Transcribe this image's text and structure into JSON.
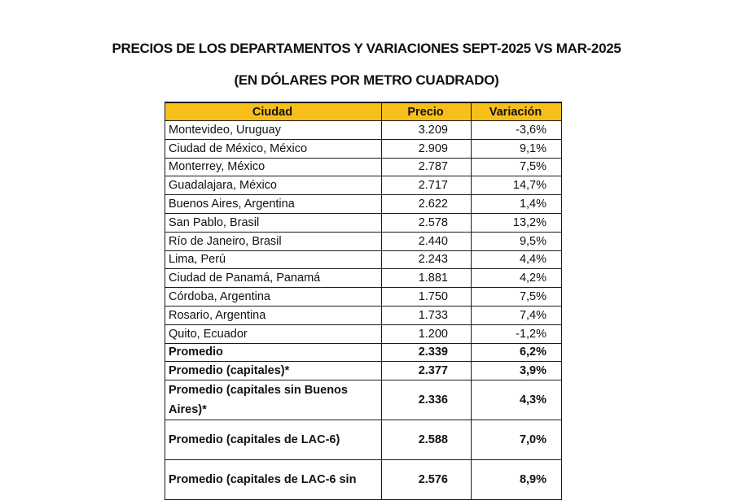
{
  "document": {
    "title_line1": "PRECIOS DE LOS DEPARTAMENTOS Y VARIACIONES SEPT-2025 VS MAR-2025",
    "title_line2": "(EN DÓLARES POR METRO CUADRADO)",
    "header_color": "#f8bf1a"
  },
  "table": {
    "headers": {
      "city": "Ciudad",
      "price": "Precio",
      "variation": "Variación"
    },
    "rows": [
      {
        "city": "Montevideo, Uruguay",
        "price": "3.209",
        "variation": "-3,6%"
      },
      {
        "city": "Ciudad de México, México",
        "price": "2.909",
        "variation": "9,1%"
      },
      {
        "city": "Monterrey, México",
        "price": "2.787",
        "variation": "7,5%"
      },
      {
        "city": "Guadalajara, México",
        "price": "2.717",
        "variation": "14,7%"
      },
      {
        "city": "Buenos Aires, Argentina",
        "price": "2.622",
        "variation": "1,4%"
      },
      {
        "city": "San Pablo, Brasil",
        "price": "2.578",
        "variation": "13,2%"
      },
      {
        "city": "Río de Janeiro, Brasil",
        "price": "2.440",
        "variation": "9,5%"
      },
      {
        "city": "Lima, Perú",
        "price": "2.243",
        "variation": "4,4%"
      },
      {
        "city": "Ciudad de Panamá, Panamá",
        "price": "1.881",
        "variation": "4,2%"
      },
      {
        "city": "Córdoba, Argentina",
        "price": "1.750",
        "variation": "7,5%"
      },
      {
        "city": "Rosario, Argentina",
        "price": "1.733",
        "variation": "7,4%"
      },
      {
        "city": "Quito, Ecuador",
        "price": "1.200",
        "variation": "-1,2%"
      }
    ],
    "summary_rows": [
      {
        "city": "Promedio",
        "price": "2.339",
        "variation": "6,2%"
      },
      {
        "city": "Promedio (capitales)*",
        "price": "2.377",
        "variation": "3,9%"
      },
      {
        "city": "Promedio (capitales sin Buenos Aires)*",
        "price": "2.336",
        "variation": "4,3%"
      },
      {
        "city": "Promedio (capitales de LAC-6)",
        "price": "2.588",
        "variation": "7,0%"
      },
      {
        "city": "Promedio (capitales de LAC-6 sin",
        "price": "2.576",
        "variation": "8,9%"
      }
    ]
  }
}
